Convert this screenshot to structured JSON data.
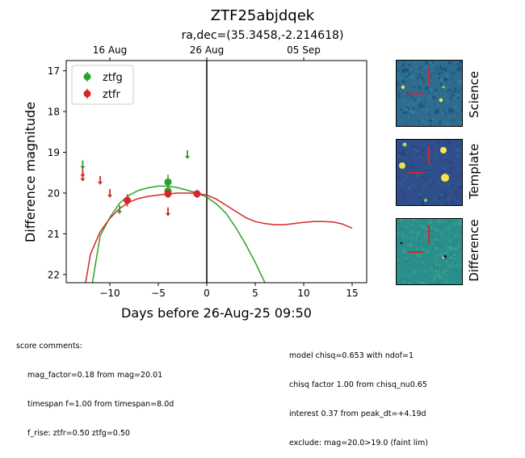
{
  "header": {
    "title": "ZTF25abjdqek",
    "subtitle": "ra,dec=(35.3458,-2.214618)"
  },
  "chart_data": {
    "type": "scatter",
    "xlabel": "Days before 26-Aug-25 09:50",
    "ylabel": "Difference magnitude",
    "xlim": [
      -14.5,
      16.5
    ],
    "ylim": [
      22.2,
      16.75
    ],
    "y_inverted": true,
    "x_ticks": [
      -10,
      -5,
      0,
      5,
      10,
      15
    ],
    "y_ticks": [
      17,
      18,
      19,
      20,
      21,
      22
    ],
    "top_axis_ticks": [
      {
        "label": "16 Aug",
        "x": -10
      },
      {
        "label": "26 Aug",
        "x": 0
      },
      {
        "label": "05 Sep",
        "x": 10
      }
    ],
    "vertical_line_x": 0,
    "legend_position": "top-left",
    "colors": {
      "ztfg": "#2ca02c",
      "ztfr": "#d62728"
    },
    "series": [
      {
        "name": "ztfg",
        "detections": [
          {
            "x": -4.0,
            "y": 19.73,
            "err": 0.18
          },
          {
            "x": -4.0,
            "y": 19.95,
            "err": 0.13
          }
        ],
        "upper_limits": [
          {
            "x": -12.8,
            "y": 19.3
          },
          {
            "x": -9.0,
            "y": 20.4
          },
          {
            "x": -2.0,
            "y": 19.05
          }
        ],
        "model": [
          [
            -11.8,
            22.2
          ],
          [
            -11,
            21.05
          ],
          [
            -10,
            20.6
          ],
          [
            -9,
            20.25
          ],
          [
            -8,
            20.05
          ],
          [
            -7,
            19.93
          ],
          [
            -6,
            19.87
          ],
          [
            -5,
            19.83
          ],
          [
            -4,
            19.83
          ],
          [
            -3,
            19.87
          ],
          [
            -2,
            19.93
          ],
          [
            -1,
            20.0
          ],
          [
            0,
            20.1
          ],
          [
            1,
            20.27
          ],
          [
            2,
            20.5
          ],
          [
            3,
            20.85
          ],
          [
            4,
            21.25
          ],
          [
            5,
            21.7
          ],
          [
            6,
            22.2
          ]
        ]
      },
      {
        "name": "ztfr",
        "detections": [
          {
            "x": -8.2,
            "y": 20.18,
            "err": 0.15
          },
          {
            "x": -4.0,
            "y": 20.02,
            "err": 0.1
          },
          {
            "x": -1.0,
            "y": 20.02,
            "err": 0.1
          }
        ],
        "upper_limits": [
          {
            "x": -12.8,
            "y": 19.5
          },
          {
            "x": -12.8,
            "y": 19.6
          },
          {
            "x": -11.0,
            "y": 19.68
          },
          {
            "x": -10.0,
            "y": 20.0
          },
          {
            "x": -4.0,
            "y": 20.45
          }
        ],
        "model": [
          [
            -12.5,
            22.2
          ],
          [
            -12,
            21.5
          ],
          [
            -11,
            20.95
          ],
          [
            -10,
            20.62
          ],
          [
            -9,
            20.38
          ],
          [
            -8,
            20.22
          ],
          [
            -7,
            20.13
          ],
          [
            -6,
            20.08
          ],
          [
            -5,
            20.05
          ],
          [
            -4,
            20.02
          ],
          [
            -3,
            20.0
          ],
          [
            -2,
            20.0
          ],
          [
            -1,
            20.01
          ],
          [
            0,
            20.05
          ],
          [
            1,
            20.15
          ],
          [
            2,
            20.3
          ],
          [
            3,
            20.45
          ],
          [
            4,
            20.6
          ],
          [
            5,
            20.7
          ],
          [
            6,
            20.75
          ],
          [
            7,
            20.78
          ],
          [
            8,
            20.78
          ],
          [
            9,
            20.75
          ],
          [
            10,
            20.72
          ],
          [
            11,
            20.7
          ],
          [
            12,
            20.7
          ],
          [
            13,
            20.71
          ],
          [
            14,
            20.76
          ],
          [
            15,
            20.86
          ]
        ]
      }
    ]
  },
  "stamps": [
    {
      "label": "Science"
    },
    {
      "label": "Template"
    },
    {
      "label": "Difference"
    }
  ],
  "comments_left": {
    "heading": "score comments:",
    "lines": [
      "mag_factor=0.18 from mag=20.01",
      "timespan f=1.00 from timespan=8.0d",
      "f_rise: ztfr=0.50 ztfg=0.50"
    ]
  },
  "comments_right": {
    "lines": [
      "model chisq=0.653 with ndof=1",
      "chisq factor 1.00 from chisq_nu0.65",
      "interest 0.37 from peak_dt=+4.19d",
      "exclude: mag=20.0>19.0 (faint lim)"
    ]
  }
}
